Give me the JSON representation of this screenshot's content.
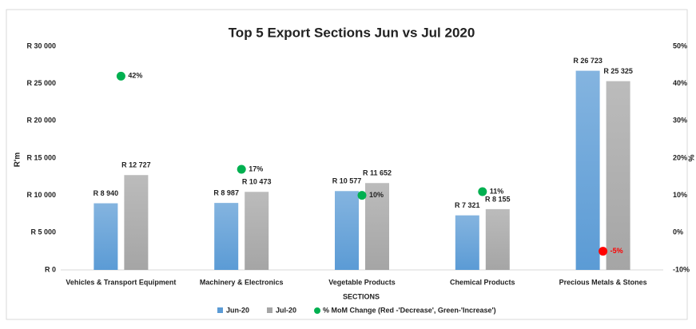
{
  "chart_data": {
    "type": "bar",
    "title": "Top 5 Export Sections  Jun vs Jul 2020",
    "x_label": "SECTIONS",
    "y_label": "R'm",
    "y2_label": "%",
    "categories": [
      "Vehicles & Transport Equipment",
      "Machinery & Electronics",
      "Vegetable Products",
      "Chemical Products",
      "Precious Metals & Stones"
    ],
    "series": [
      {
        "name": "Jun-20",
        "color": "#5b9bd5",
        "values": [
          8940,
          8987,
          10577,
          7321,
          26723
        ],
        "value_labels": [
          "R 8 940",
          "R 8 987",
          "R 10 577",
          "R 7 321",
          "R 26 723"
        ]
      },
      {
        "name": "Jul-20",
        "color": "#a5a5a5",
        "values": [
          12727,
          10473,
          11652,
          8155,
          25325
        ],
        "value_labels": [
          "R 12 727",
          "R 10 473",
          "R 11 652",
          "R 8 155",
          "R 25 325"
        ]
      },
      {
        "name": "% MoM Change (Red -'Decrease', Green-'Increase')",
        "type": "scatter",
        "axis": "y2",
        "color": "#00b050",
        "colors": [
          "#00b050",
          "#00b050",
          "#00b050",
          "#00b050",
          "#ff0000"
        ],
        "values": [
          42,
          17,
          10,
          11,
          -5
        ],
        "value_labels": [
          "42%",
          "17%",
          "10%",
          "11%",
          "-5%"
        ]
      }
    ],
    "ylim": [
      0,
      30000
    ],
    "yticks": [
      {
        "value": 0,
        "label": "R 0"
      },
      {
        "value": 5000,
        "label": "R 5 000"
      },
      {
        "value": 10000,
        "label": "R 10 000"
      },
      {
        "value": 15000,
        "label": "R 15 000"
      },
      {
        "value": 20000,
        "label": "R 20 000"
      },
      {
        "value": 25000,
        "label": "R 25 000"
      },
      {
        "value": 30000,
        "label": "R 30 000"
      }
    ],
    "y2lim": [
      -10,
      50
    ],
    "y2ticks": [
      {
        "value": -10,
        "label": "-10%"
      },
      {
        "value": 0,
        "label": "0%"
      },
      {
        "value": 10,
        "label": "10%"
      },
      {
        "value": 20,
        "label": "20%"
      },
      {
        "value": 30,
        "label": "30%"
      },
      {
        "value": 40,
        "label": "40%"
      },
      {
        "value": 50,
        "label": "50%"
      }
    ],
    "grid": false,
    "legend": "bottom"
  }
}
